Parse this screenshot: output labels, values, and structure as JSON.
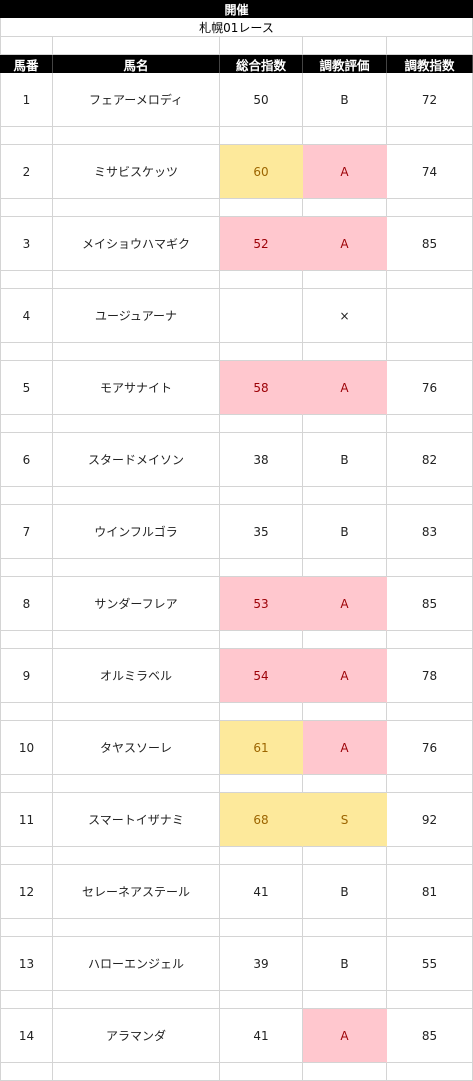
{
  "sheet": {
    "title": "開催",
    "subtitle": "札幌01レース",
    "headers": [
      "馬番",
      "馬名",
      "総合指数",
      "調教評価",
      "調教指数"
    ],
    "colors": {
      "header_bg": "#000000",
      "header_text": "#ffffff",
      "highlight_yellow": "#fde99b",
      "highlight_pink": "#ffc7ce",
      "text_yellow": "#9c6500",
      "text_pink": "#9c0006",
      "grid": "#d4d4d4"
    },
    "rows": [
      {
        "no": "1",
        "name": "フェアーメロディ",
        "total": "50",
        "grade": "B",
        "train": "72",
        "total_hl": "",
        "grade_hl": ""
      },
      {
        "no": "2",
        "name": "ミサビスケッツ",
        "total": "60",
        "grade": "A",
        "train": "74",
        "total_hl": "yellow",
        "grade_hl": "pink"
      },
      {
        "no": "3",
        "name": "メイショウハマギク",
        "total": "52",
        "grade": "A",
        "train": "85",
        "total_hl": "pink",
        "grade_hl": "pink"
      },
      {
        "no": "4",
        "name": "ユージュアーナ",
        "total": "",
        "grade": "×",
        "train": "",
        "total_hl": "",
        "grade_hl": ""
      },
      {
        "no": "5",
        "name": "モアサナイト",
        "total": "58",
        "grade": "A",
        "train": "76",
        "total_hl": "pink",
        "grade_hl": "pink"
      },
      {
        "no": "6",
        "name": "スタードメイソン",
        "total": "38",
        "grade": "B",
        "train": "82",
        "total_hl": "",
        "grade_hl": ""
      },
      {
        "no": "7",
        "name": "ウインフルゴラ",
        "total": "35",
        "grade": "B",
        "train": "83",
        "total_hl": "",
        "grade_hl": ""
      },
      {
        "no": "8",
        "name": "サンダーフレア",
        "total": "53",
        "grade": "A",
        "train": "85",
        "total_hl": "pink",
        "grade_hl": "pink"
      },
      {
        "no": "9",
        "name": "オルミラベル",
        "total": "54",
        "grade": "A",
        "train": "78",
        "total_hl": "pink",
        "grade_hl": "pink"
      },
      {
        "no": "10",
        "name": "タヤスソーレ",
        "total": "61",
        "grade": "A",
        "train": "76",
        "total_hl": "yellow",
        "grade_hl": "pink"
      },
      {
        "no": "11",
        "name": "スマートイザナミ",
        "total": "68",
        "grade": "S",
        "train": "92",
        "total_hl": "yellow",
        "grade_hl": "yellow"
      },
      {
        "no": "12",
        "name": "セレーネアステール",
        "total": "41",
        "grade": "B",
        "train": "81",
        "total_hl": "",
        "grade_hl": ""
      },
      {
        "no": "13",
        "name": "ハローエンジェル",
        "total": "39",
        "grade": "B",
        "train": "55",
        "total_hl": "",
        "grade_hl": ""
      },
      {
        "no": "14",
        "name": "アラマンダ",
        "total": "41",
        "grade": "A",
        "train": "85",
        "total_hl": "",
        "grade_hl": "pink"
      }
    ]
  }
}
